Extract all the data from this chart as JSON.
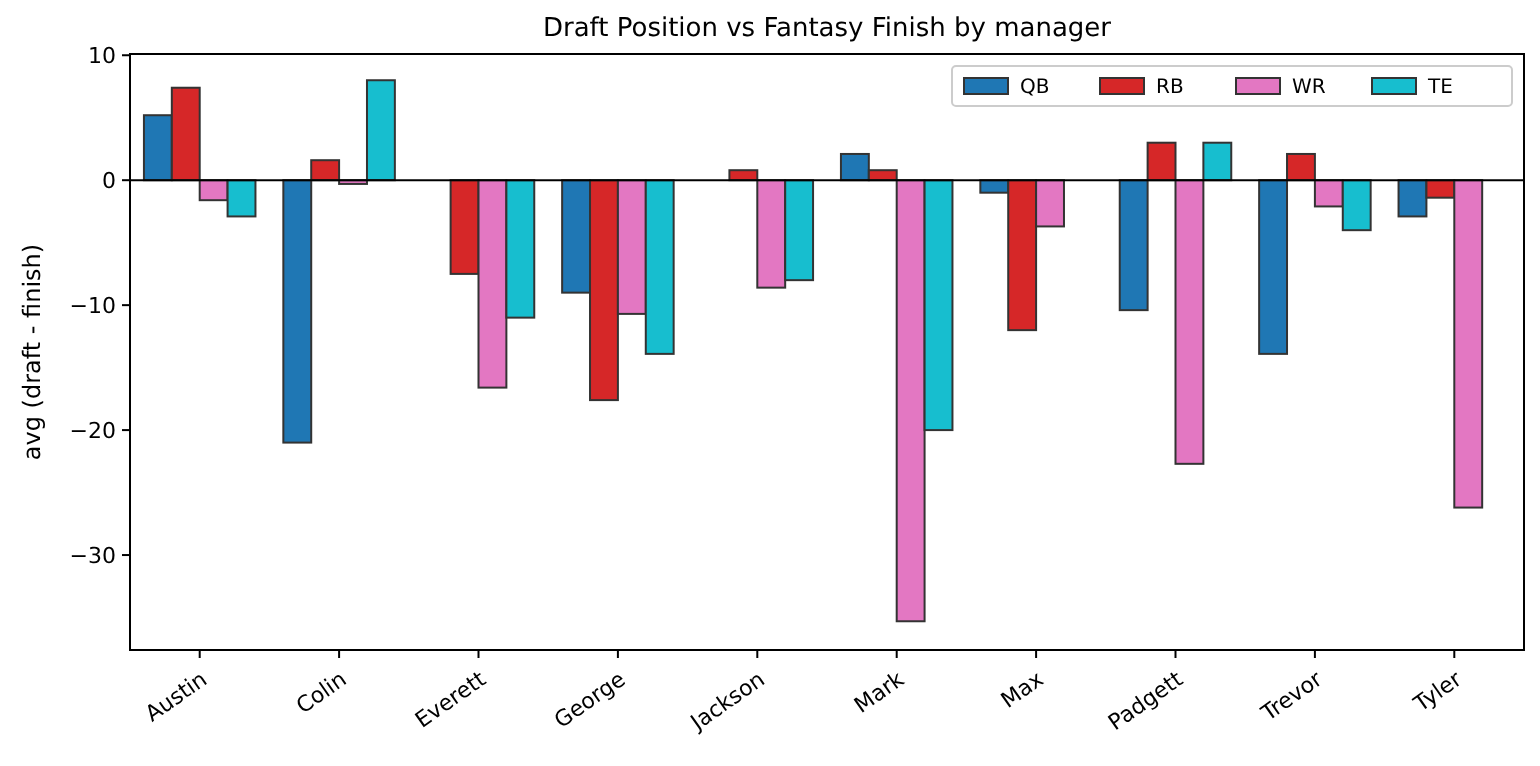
{
  "chart_data": {
    "type": "bar",
    "title": "Draft Position vs Fantasy Finish by manager",
    "ylabel": "avg (draft - finish)",
    "categories": [
      "Austin",
      "Colin",
      "Everett",
      "George",
      "Jackson",
      "Mark",
      "Max",
      "Padgett",
      "Trevor",
      "Tyler"
    ],
    "series": [
      {
        "name": "QB",
        "color": "#1f77b4",
        "values": [
          5.2,
          -21.0,
          0,
          -9.0,
          0,
          2.1,
          -1.0,
          -10.4,
          -13.9,
          -2.9
        ]
      },
      {
        "name": "RB",
        "color": "#d62728",
        "values": [
          7.4,
          1.6,
          -7.5,
          -17.6,
          0.8,
          0.8,
          -12.0,
          3.0,
          2.1,
          -1.4
        ]
      },
      {
        "name": "WR",
        "color": "#e377c2",
        "values": [
          -1.6,
          -0.3,
          -16.6,
          -10.7,
          -8.6,
          -35.3,
          -3.7,
          -22.7,
          -2.1,
          -26.2
        ]
      },
      {
        "name": "TE",
        "color": "#17becf",
        "values": [
          -2.9,
          8.0,
          -11.0,
          -13.9,
          -8.0,
          -20.0,
          0,
          3.0,
          -4.0,
          0
        ]
      }
    ],
    "ylim": [
      -37.6,
      10.1
    ],
    "yticks": [
      -30,
      -20,
      -10,
      0,
      10
    ],
    "ref_lines": [
      {
        "axis": "y",
        "value": 0,
        "color": "#000000"
      }
    ],
    "legend": "top right"
  }
}
